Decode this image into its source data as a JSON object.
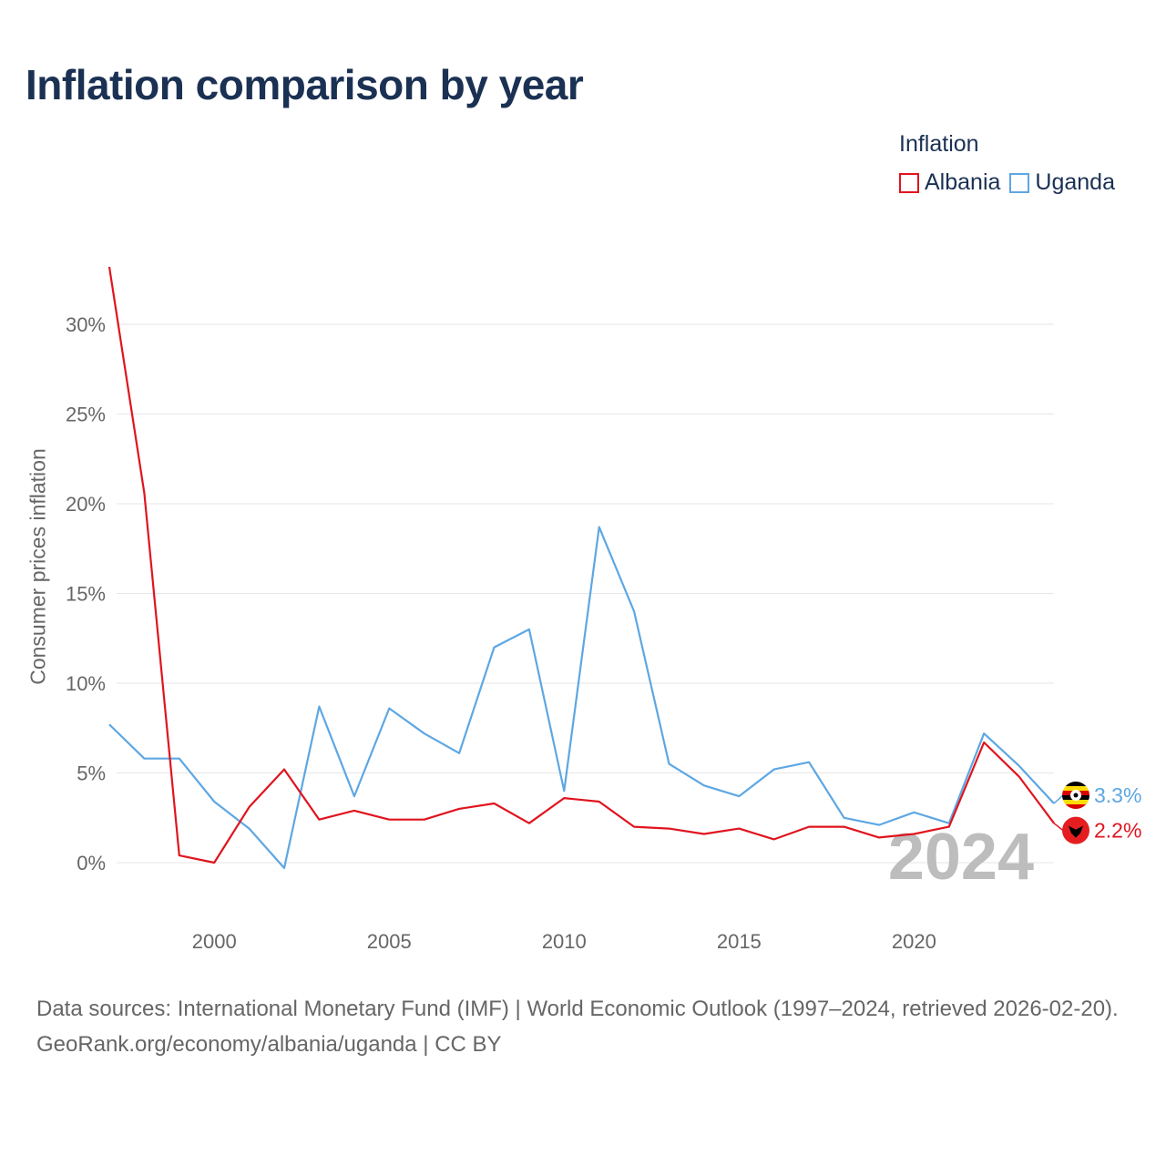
{
  "title": "Inflation comparison by year",
  "legend": {
    "title": "Inflation",
    "items": [
      {
        "label": "Albania",
        "color": "#e0141e"
      },
      {
        "label": "Uganda",
        "color": "#5da7e3"
      }
    ]
  },
  "chart_data": {
    "type": "line",
    "title": "Inflation comparison by year",
    "xlabel": "",
    "ylabel": "Consumer prices inflation",
    "x": [
      1997,
      1998,
      1999,
      2000,
      2001,
      2002,
      2003,
      2004,
      2005,
      2006,
      2007,
      2008,
      2009,
      2010,
      2011,
      2012,
      2013,
      2014,
      2015,
      2016,
      2017,
      2018,
      2019,
      2020,
      2021,
      2022,
      2023,
      2024
    ],
    "series": [
      {
        "name": "Albania",
        "color": "#e0141e",
        "end_label": "2.2%",
        "values": [
          33.2,
          20.6,
          0.4,
          0.0,
          3.1,
          5.2,
          2.4,
          2.9,
          2.4,
          2.4,
          3.0,
          3.3,
          2.2,
          3.6,
          3.4,
          2.0,
          1.9,
          1.6,
          1.9,
          1.3,
          2.0,
          2.0,
          1.4,
          1.6,
          2.0,
          6.7,
          4.8,
          2.2
        ]
      },
      {
        "name": "Uganda",
        "color": "#5da7e3",
        "end_label": "3.3%",
        "values": [
          7.7,
          5.8,
          5.8,
          3.4,
          1.9,
          -0.3,
          8.7,
          3.7,
          8.6,
          7.2,
          6.1,
          12.0,
          13.0,
          4.0,
          18.7,
          14.0,
          5.5,
          4.3,
          3.7,
          5.2,
          5.6,
          2.5,
          2.1,
          2.8,
          2.2,
          7.2,
          5.4,
          3.3
        ]
      }
    ],
    "xlim": [
      1997,
      2024
    ],
    "ylim": [
      -3,
      33.2
    ],
    "x_ticks": [
      2000,
      2005,
      2010,
      2015,
      2020
    ],
    "y_ticks": [
      0,
      5,
      10,
      15,
      20,
      25,
      30
    ],
    "y_tick_labels": [
      "0%",
      "5%",
      "10%",
      "15%",
      "20%",
      "25%",
      "30%"
    ],
    "grid": true,
    "legend_position": "top-right",
    "watermark": "2024"
  },
  "footer": {
    "sources": "Data sources: International Monetary Fund (IMF) | World Economic Outlook (1997–2024, retrieved 2026-02-20).",
    "credit": "GeoRank.org/economy/albania/uganda | CC BY"
  }
}
